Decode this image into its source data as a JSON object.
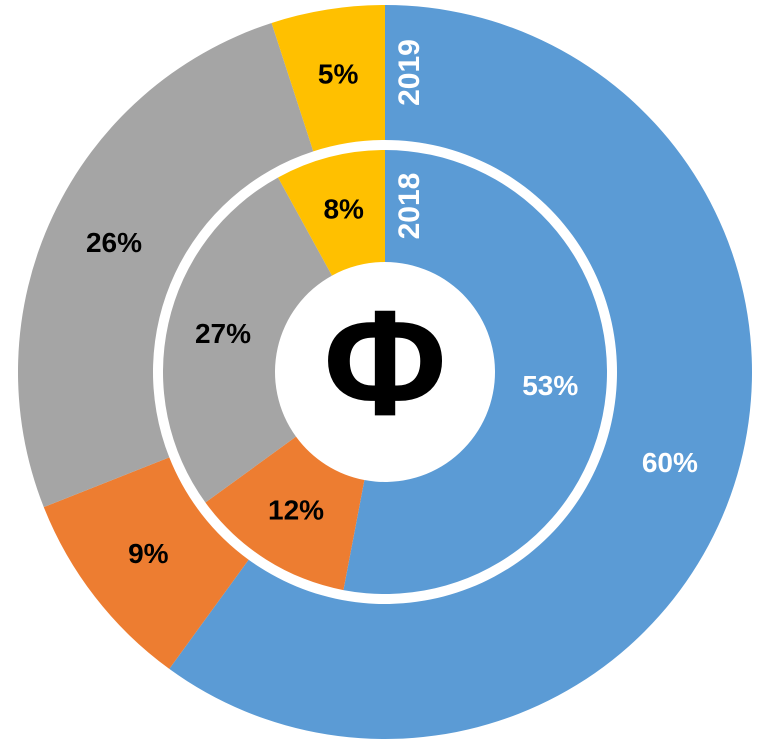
{
  "chart_data": {
    "type": "donut",
    "center_label": "Φ",
    "colors": [
      "#5b9bd5",
      "#ed7d31",
      "#a5a5a5",
      "#ffc000"
    ],
    "label_colors": [
      "#ffffff",
      "#000000",
      "#000000",
      "#000000"
    ],
    "series": [
      {
        "name": "2019",
        "values": [
          60,
          9,
          26,
          5
        ],
        "value_labels": [
          "60%",
          "9%",
          "26%",
          "5%"
        ]
      },
      {
        "name": "2018",
        "values": [
          53,
          12,
          27,
          8
        ],
        "value_labels": [
          "53%",
          "12%",
          "27%",
          "8%"
        ]
      }
    ]
  }
}
